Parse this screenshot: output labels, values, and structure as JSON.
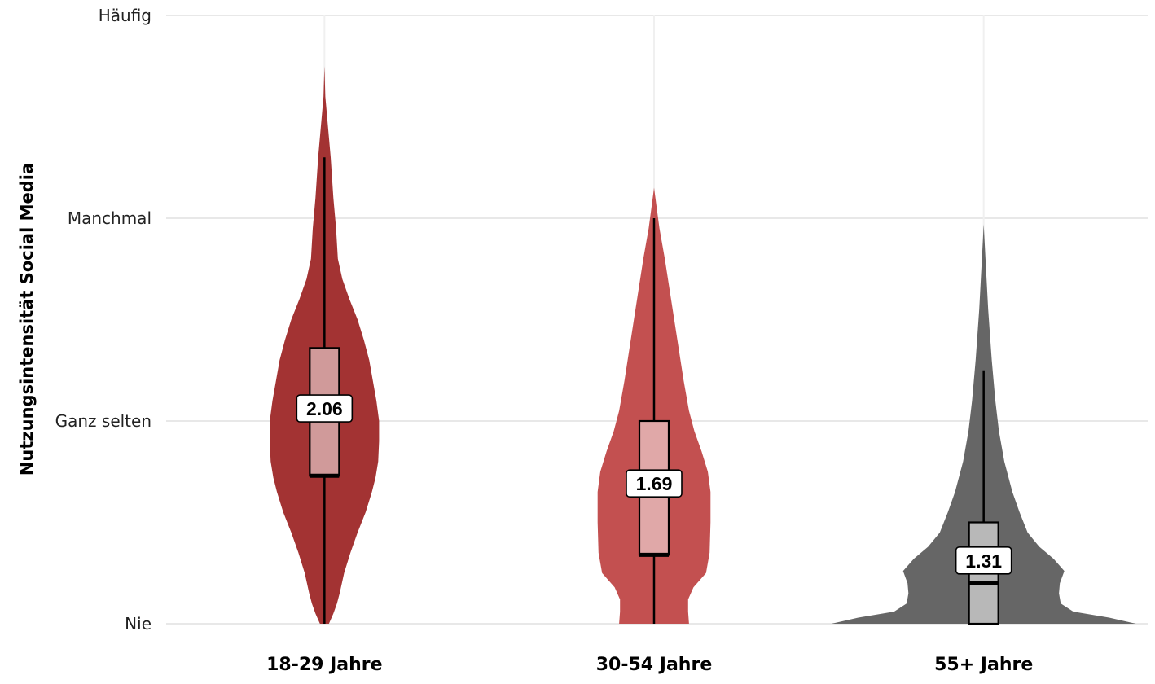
{
  "chart_data": {
    "type": "violin",
    "title": "",
    "xlabel": "",
    "ylabel": "Nutzungsintensität Social Media",
    "ylim": [
      1,
      4
    ],
    "y_ticks": [
      {
        "value": 1,
        "label": "Nie"
      },
      {
        "value": 2,
        "label": "Ganz selten"
      },
      {
        "value": 3,
        "label": "Manchmal"
      },
      {
        "value": 4,
        "label": "Häufig"
      }
    ],
    "grid": true,
    "legend": "none",
    "categories": [
      "18-29 Jahre",
      "30-54 Jahre",
      "55+ Jahre"
    ],
    "series": [
      {
        "category": "18-29 Jahre",
        "fill_color": "#A33333",
        "box_color": "#D09A9A",
        "mean_label": "2.06",
        "box": {
          "whisker_low": 1.0,
          "q1": 1.73,
          "median": 1.73,
          "q3": 2.36,
          "whisker_high": 3.3
        },
        "density_max": 3.75,
        "density": [
          [
            1.0,
            0.05
          ],
          [
            1.05,
            0.1
          ],
          [
            1.1,
            0.14
          ],
          [
            1.15,
            0.17
          ],
          [
            1.25,
            0.22
          ],
          [
            1.35,
            0.29
          ],
          [
            1.45,
            0.37
          ],
          [
            1.55,
            0.46
          ],
          [
            1.65,
            0.53
          ],
          [
            1.72,
            0.57
          ],
          [
            1.8,
            0.6
          ],
          [
            1.9,
            0.61
          ],
          [
            2.0,
            0.61
          ],
          [
            2.1,
            0.58
          ],
          [
            2.2,
            0.54
          ],
          [
            2.3,
            0.5
          ],
          [
            2.4,
            0.44
          ],
          [
            2.5,
            0.37
          ],
          [
            2.6,
            0.28
          ],
          [
            2.7,
            0.2
          ],
          [
            2.8,
            0.15
          ],
          [
            2.95,
            0.13
          ],
          [
            3.1,
            0.1
          ],
          [
            3.3,
            0.07
          ],
          [
            3.45,
            0.04
          ],
          [
            3.6,
            0.01
          ],
          [
            3.75,
            0.0
          ]
        ]
      },
      {
        "category": "30-54 Jahre",
        "fill_color": "#C35050",
        "box_color": "#E0A8A8",
        "mean_label": "1.69",
        "box": {
          "whisker_low": 1.0,
          "q1": 1.34,
          "median": 1.34,
          "q3": 2.0,
          "whisker_high": 3.0
        },
        "density_max": 3.15,
        "density": [
          [
            1.0,
            0.39
          ],
          [
            1.06,
            0.38
          ],
          [
            1.12,
            0.38
          ],
          [
            1.18,
            0.44
          ],
          [
            1.25,
            0.58
          ],
          [
            1.35,
            0.62
          ],
          [
            1.5,
            0.63
          ],
          [
            1.65,
            0.63
          ],
          [
            1.75,
            0.6
          ],
          [
            1.85,
            0.53
          ],
          [
            1.95,
            0.45
          ],
          [
            2.05,
            0.39
          ],
          [
            2.2,
            0.33
          ],
          [
            2.4,
            0.26
          ],
          [
            2.6,
            0.19
          ],
          [
            2.8,
            0.12
          ],
          [
            2.95,
            0.06
          ],
          [
            3.05,
            0.03
          ],
          [
            3.15,
            0.0
          ]
        ]
      },
      {
        "category": "55+ Jahre",
        "fill_color": "#666666",
        "box_color": "#B8B8B8",
        "mean_label": "1.31",
        "box": {
          "whisker_low": 1.0,
          "q1": 1.0,
          "median": 1.2,
          "q3": 1.5,
          "whisker_high": 2.25
        },
        "density_max": 2.97,
        "density": [
          [
            1.0,
            1.7
          ],
          [
            1.03,
            1.4
          ],
          [
            1.06,
            1.0
          ],
          [
            1.1,
            0.86
          ],
          [
            1.15,
            0.84
          ],
          [
            1.2,
            0.85
          ],
          [
            1.26,
            0.9
          ],
          [
            1.32,
            0.78
          ],
          [
            1.38,
            0.62
          ],
          [
            1.45,
            0.49
          ],
          [
            1.55,
            0.4
          ],
          [
            1.65,
            0.32
          ],
          [
            1.8,
            0.23
          ],
          [
            1.95,
            0.17
          ],
          [
            2.1,
            0.13
          ],
          [
            2.3,
            0.09
          ],
          [
            2.55,
            0.05
          ],
          [
            2.8,
            0.02
          ],
          [
            2.97,
            0.0
          ]
        ]
      }
    ]
  }
}
